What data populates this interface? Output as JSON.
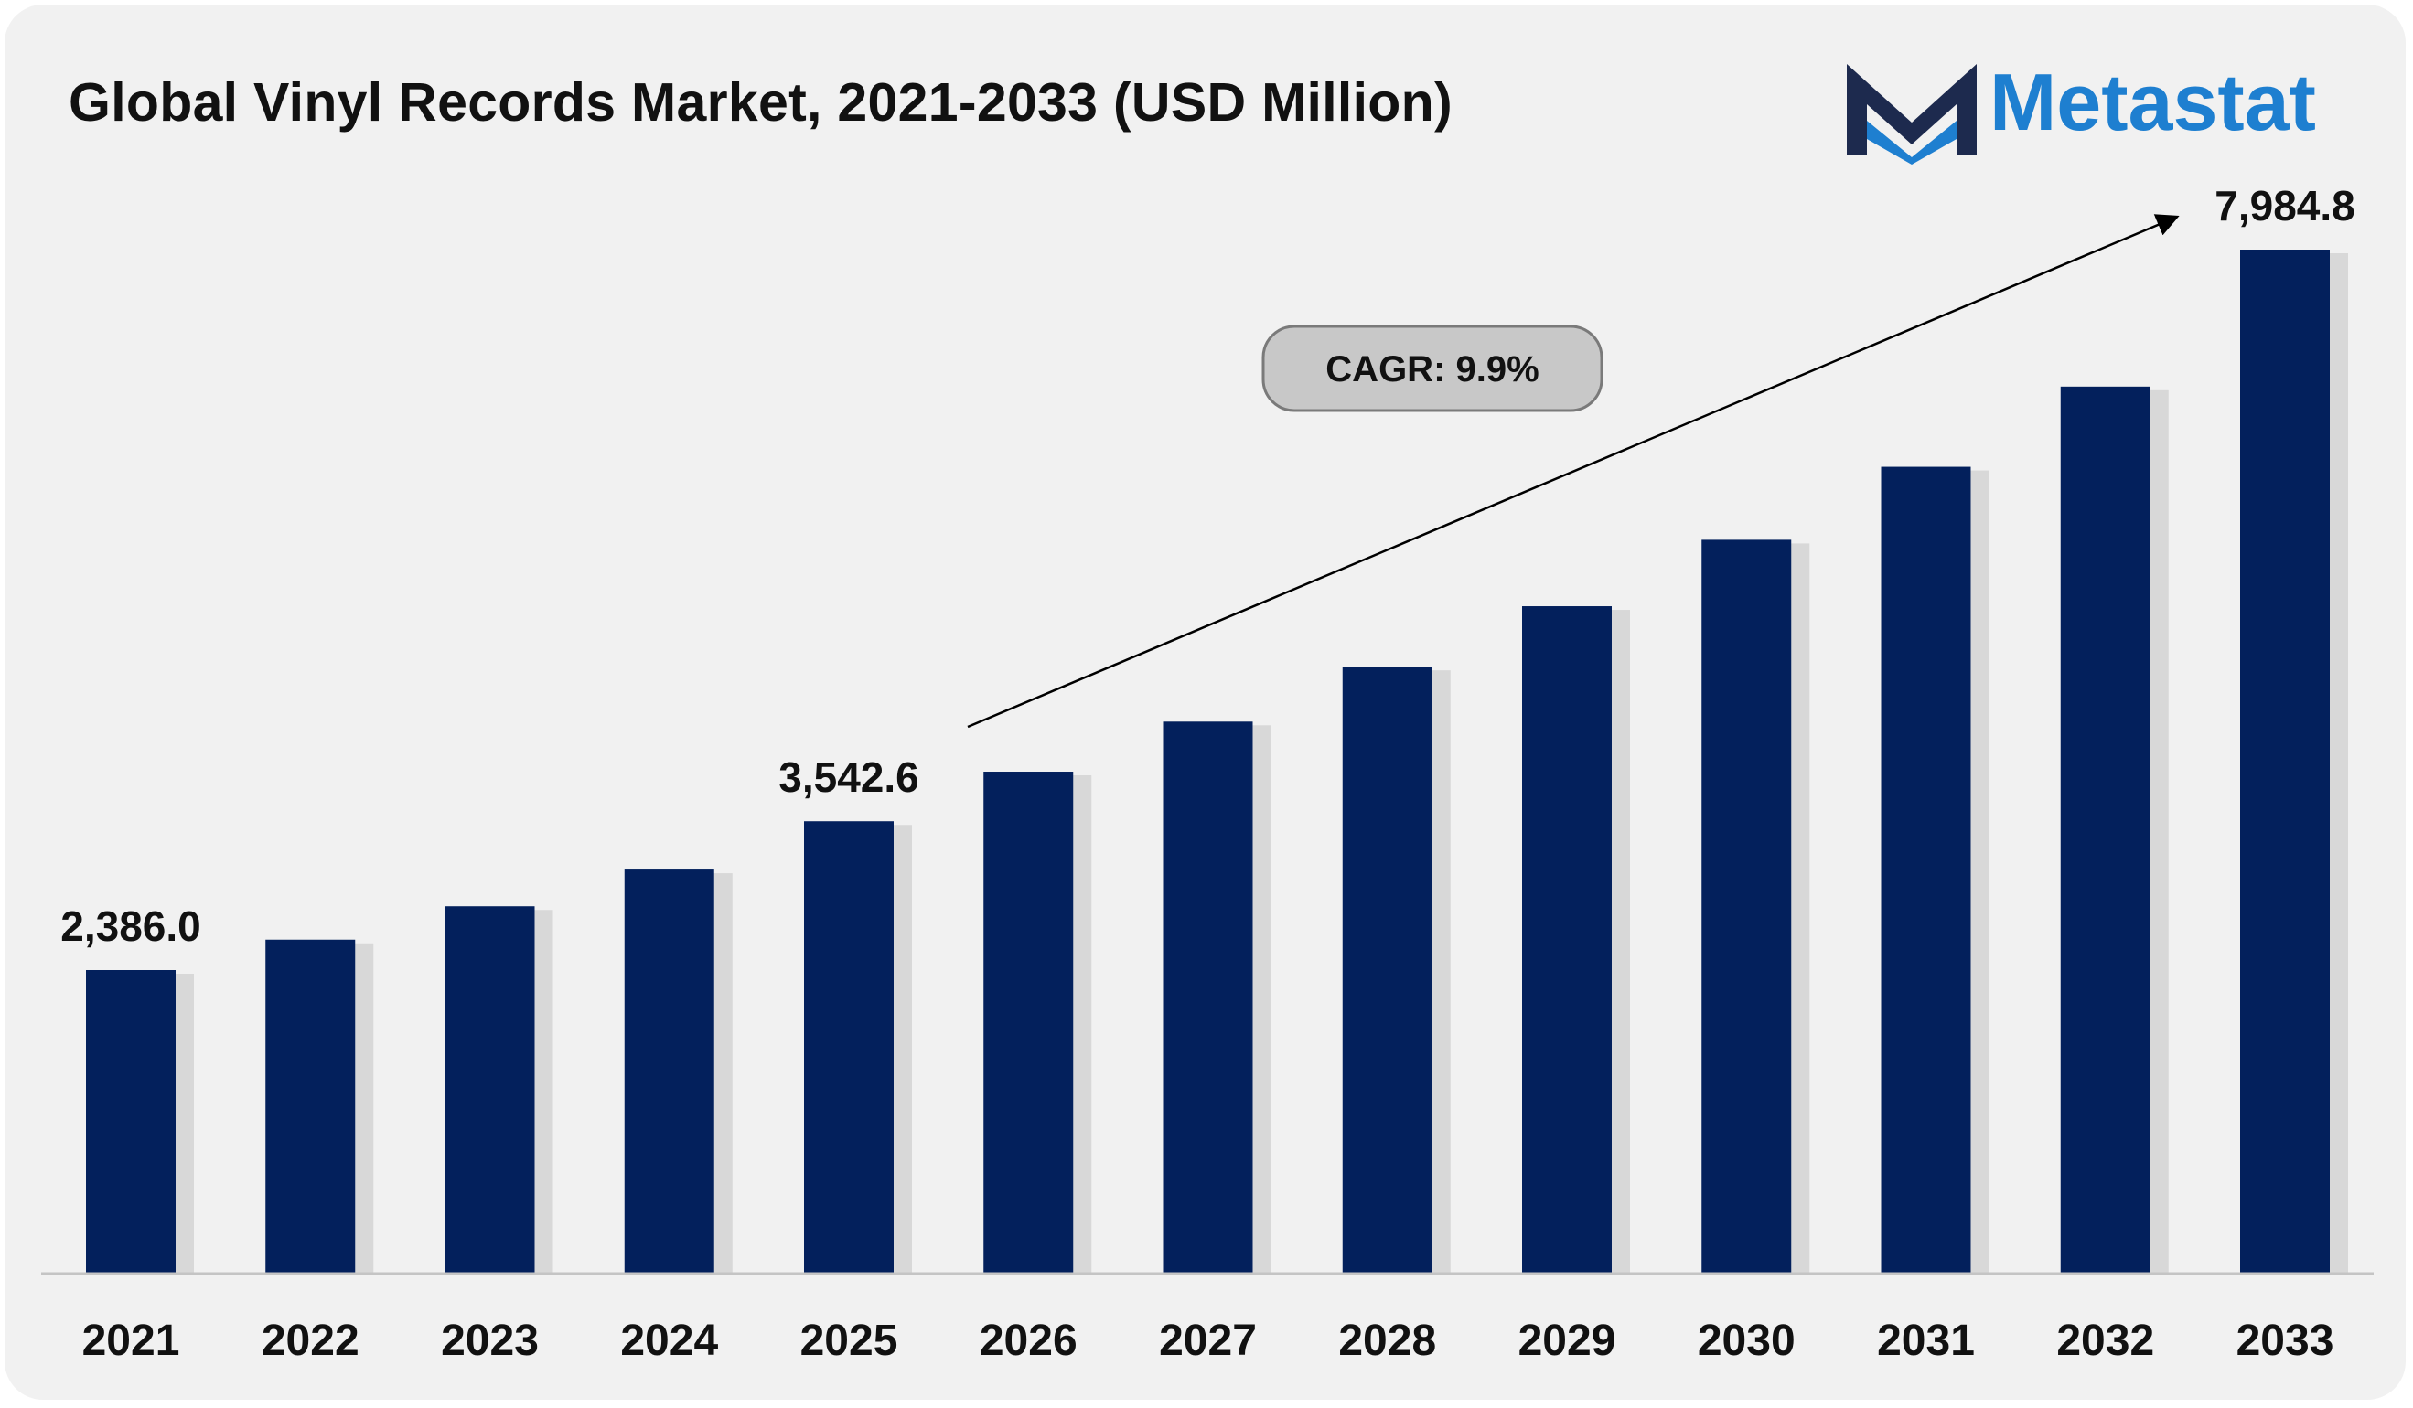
{
  "title": "Global Vinyl Records Market, 2021-2033 (USD Million)",
  "logo": {
    "text": "Metastat",
    "icon": "metastat-m-logo-icon",
    "colors": {
      "dark": "#1d2a4e",
      "blue": "#1e7fd0"
    }
  },
  "cagr_label": "CAGR: 9.9%",
  "colors": {
    "bar": "#03205c",
    "background": "#f1f1f1",
    "cagr_fill": "#c8c8c8",
    "cagr_stroke": "#7a7a7a"
  },
  "chart_data": {
    "type": "bar",
    "title": "Global Vinyl Records Market, 2021-2033 (USD Million)",
    "xlabel": "",
    "ylabel": "",
    "categories": [
      "2021",
      "2022",
      "2023",
      "2024",
      "2025",
      "2026",
      "2027",
      "2028",
      "2029",
      "2030",
      "2031",
      "2032",
      "2033"
    ],
    "values": [
      2386.0,
      2622.2,
      2881.8,
      3167.1,
      3542.6,
      3927.7,
      4316.6,
      4743.9,
      5213.6,
      5729.7,
      6296.9,
      6920.3,
      7984.8
    ],
    "data_labels": [
      {
        "index": 0,
        "text": "2,386.0"
      },
      {
        "index": 4,
        "text": "3,542.6"
      },
      {
        "index": 12,
        "text": "7,984.8"
      }
    ],
    "ylim": [
      0,
      9000
    ],
    "grid": false,
    "legend": "none",
    "annotation": "CAGR: 9.9%"
  }
}
